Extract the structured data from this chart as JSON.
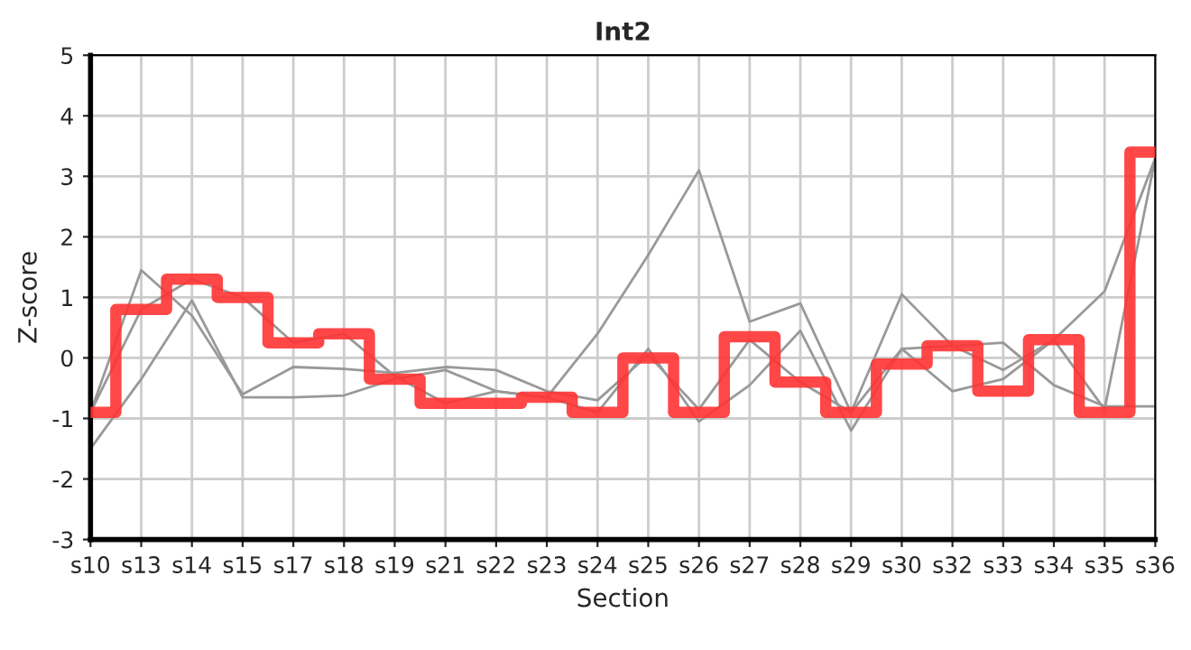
{
  "chart_data": {
    "type": "line",
    "title": "Int2",
    "xlabel": "Section",
    "ylabel": "Z-score",
    "categories": [
      "s10",
      "s13",
      "s14",
      "s15",
      "s17",
      "s18",
      "s19",
      "s21",
      "s22",
      "s23",
      "s24",
      "s25",
      "s26",
      "s27",
      "s28",
      "s29",
      "s30",
      "s32",
      "s33",
      "s34",
      "s35",
      "s36"
    ],
    "series": [
      {
        "color": "#999999",
        "values": [
          -0.9,
          0.8,
          1.3,
          1.0,
          0.25,
          0.4,
          -0.3,
          -0.75,
          -0.55,
          -0.65,
          0.4,
          1.7,
          3.1,
          0.6,
          0.9,
          -0.9,
          0.15,
          0.2,
          -0.2,
          0.3,
          1.1,
          3.3
        ]
      },
      {
        "color": "#999999",
        "values": [
          -0.9,
          1.45,
          0.7,
          -0.6,
          -0.15,
          -0.18,
          -0.25,
          -0.15,
          -0.2,
          -0.55,
          -0.7,
          0.05,
          -0.85,
          0.3,
          -0.4,
          -0.9,
          1.05,
          0.2,
          0.25,
          -0.45,
          -0.8,
          -0.8
        ]
      },
      {
        "color": "#999999",
        "values": [
          -1.5,
          -0.35,
          0.95,
          -0.65,
          -0.65,
          -0.62,
          -0.35,
          -0.2,
          -0.55,
          -0.65,
          -0.9,
          0.15,
          -1.05,
          -0.45,
          0.45,
          -1.2,
          0.15,
          -0.55,
          -0.35,
          0.3,
          -0.85,
          3.3
        ]
      },
      {
        "type": "step",
        "color": "#ff3333",
        "values": [
          -0.9,
          0.8,
          1.3,
          1.0,
          0.25,
          0.4,
          -0.35,
          -0.75,
          -0.75,
          -0.65,
          -0.9,
          0.0,
          -0.9,
          0.35,
          -0.4,
          -0.9,
          -0.1,
          0.2,
          -0.55,
          0.3,
          -0.9,
          3.4
        ]
      }
    ],
    "ylim": [
      -3,
      5
    ],
    "yticks": [
      -3,
      -2,
      -1,
      0,
      1,
      2,
      3,
      4,
      5
    ],
    "grid": true
  }
}
